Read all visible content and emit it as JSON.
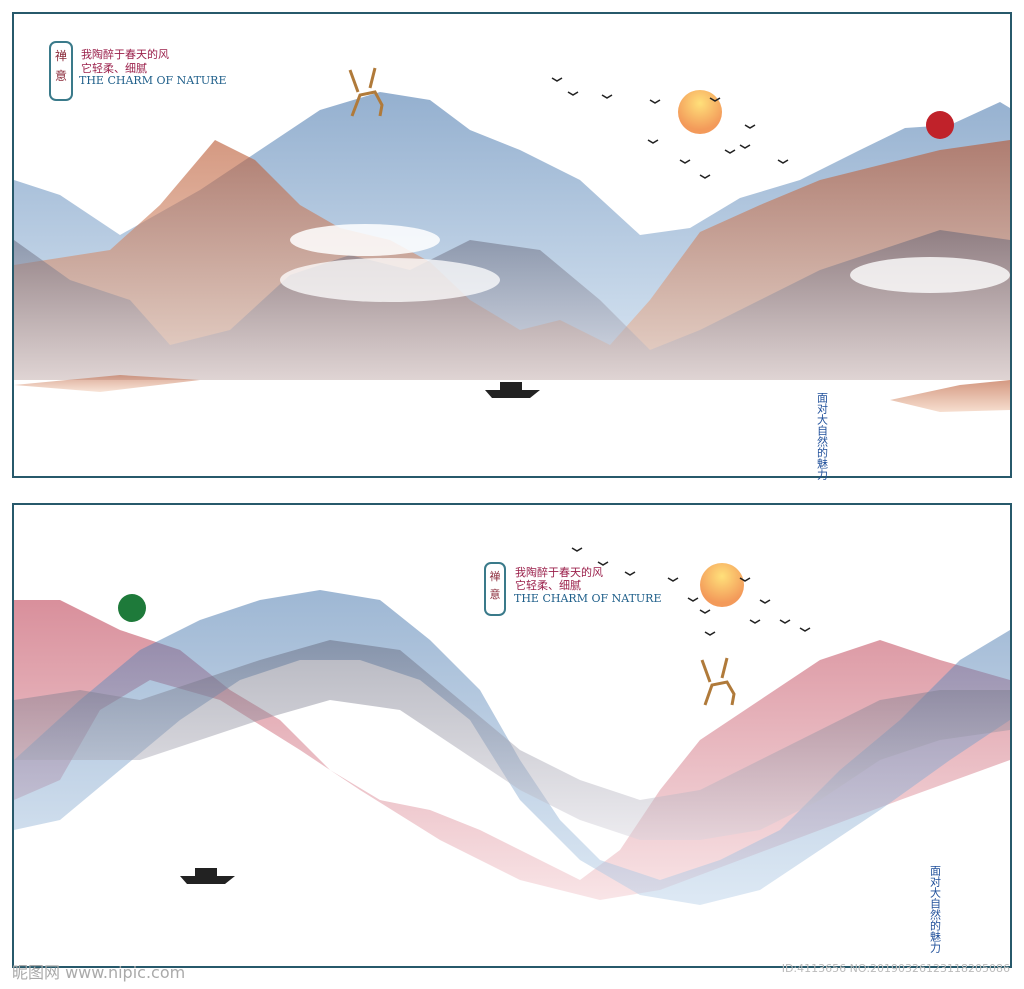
{
  "panels": [
    {
      "logo": [
        "禅",
        "意"
      ],
      "lines": [
        "我陶醉于春天的风",
        "它轻柔、细腻"
      ],
      "title": "THE CHARM OF NATURE",
      "vertical": "面对大自然的魅力"
    },
    {
      "logo": [
        "禅",
        "意"
      ],
      "lines": [
        "我陶醉于春天的风",
        "它轻柔、细腻"
      ],
      "title": "THE CHARM OF NATURE",
      "vertical": "面对大自然的魅力"
    }
  ],
  "watermark": {
    "site": "昵图网 www.nipic.com",
    "id": "ID:4113656 NO:20190326123118205086"
  }
}
